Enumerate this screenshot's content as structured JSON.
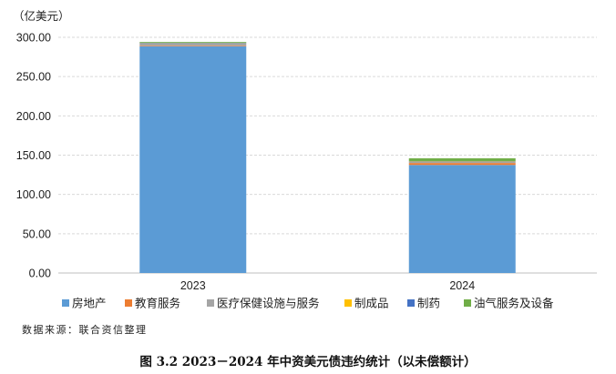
{
  "chart_data": {
    "type": "bar",
    "stacked": true,
    "unit_label": "（亿美元）",
    "categories": [
      "2023",
      "2024"
    ],
    "ylim": [
      0,
      300
    ],
    "yticks": [
      "0.00",
      "50.00",
      "100.00",
      "150.00",
      "200.00",
      "250.00",
      "300.00"
    ],
    "grid": true,
    "legend_position": "bottom",
    "series": [
      {
        "name": "房地产",
        "color": "#5B9BD5",
        "values": [
          288.5,
          137.5
        ]
      },
      {
        "name": "教育服务",
        "color": "#ED7D31",
        "values": [
          0.8,
          2.5
        ]
      },
      {
        "name": "医疗保健设施与服务",
        "color": "#A5A5A5",
        "values": [
          3.0,
          1.5
        ]
      },
      {
        "name": "制成品",
        "color": "#FFC000",
        "values": [
          0.2,
          0.5
        ]
      },
      {
        "name": "制药",
        "color": "#4472C4",
        "values": [
          0.5,
          0.5
        ]
      },
      {
        "name": "油气服务及设备",
        "color": "#70AD47",
        "values": [
          1.0,
          3.5
        ]
      }
    ]
  },
  "source": "数据来源：联合资信整理",
  "caption": "图 3.2   2023－2024 年中资美元债违约统计（以未偿额计）"
}
